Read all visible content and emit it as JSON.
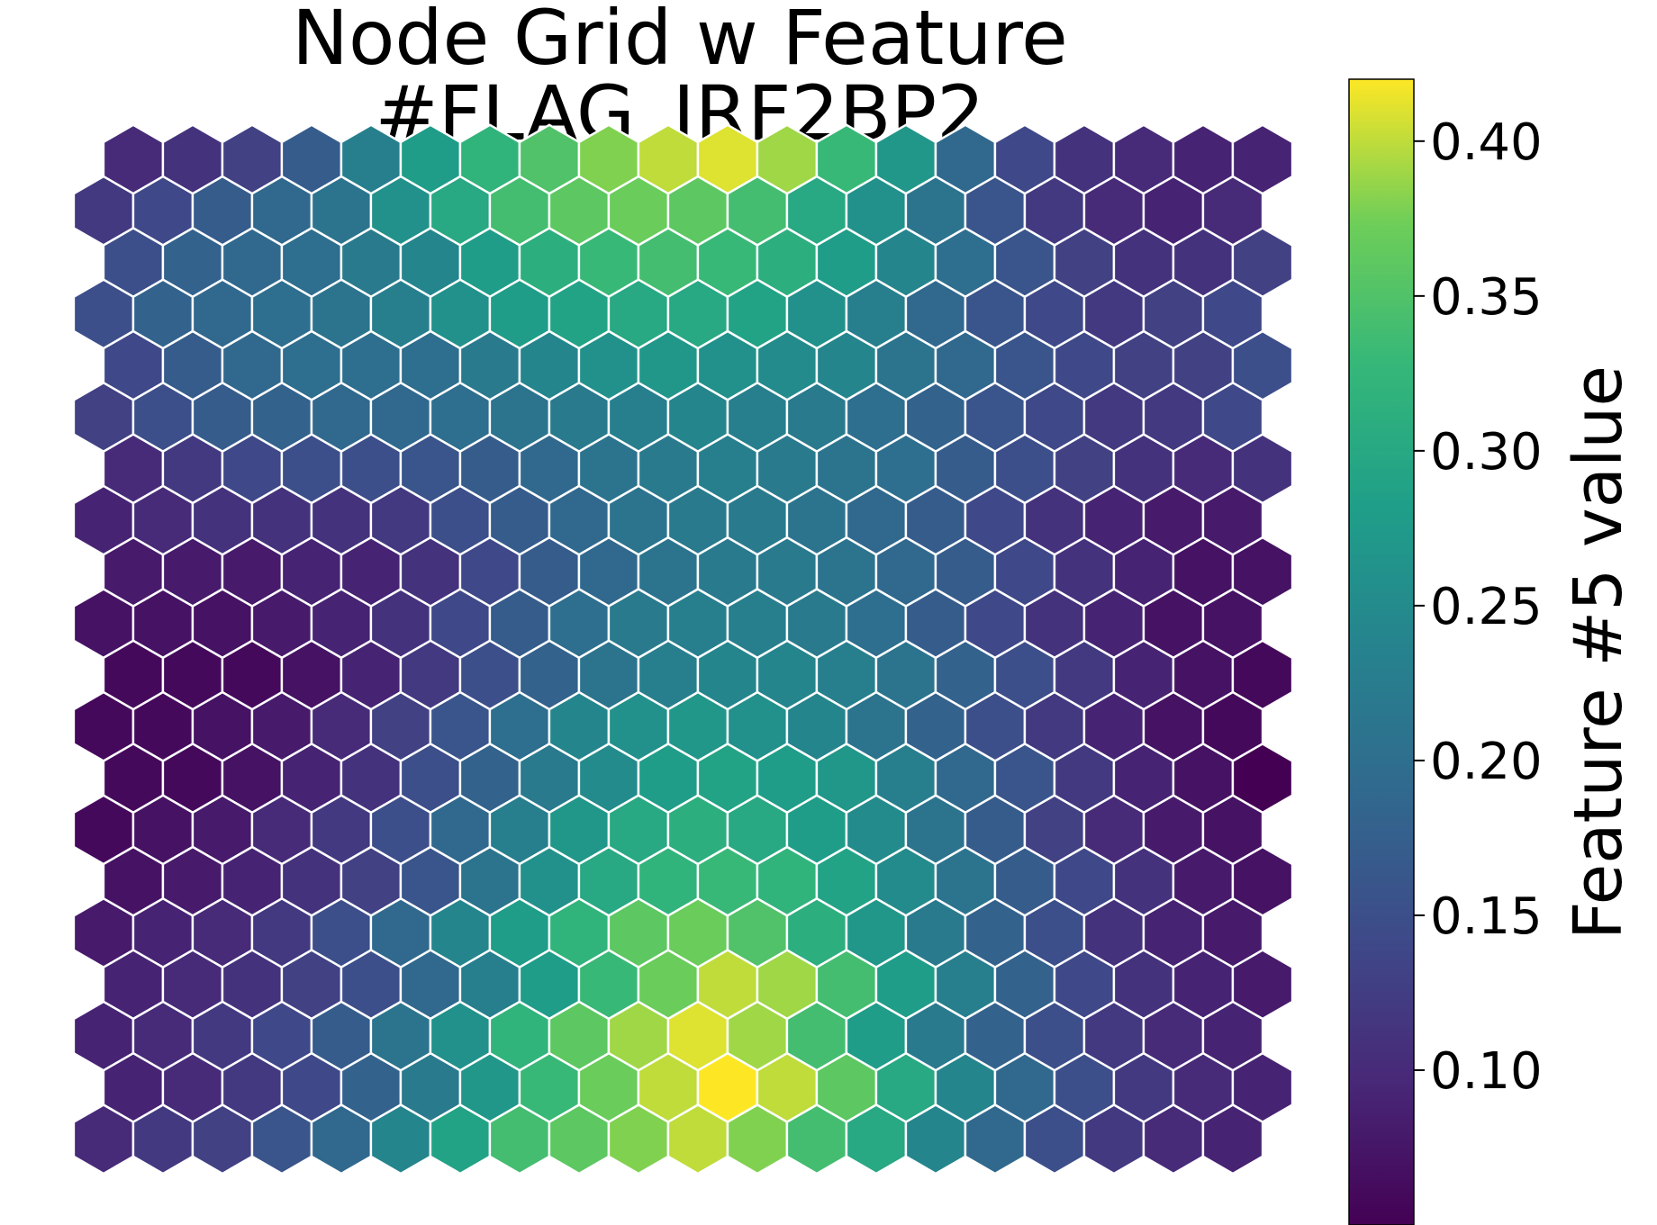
{
  "chart_data": {
    "type": "heatmap",
    "title": "Node Grid w Feature #FLAG_IRF2BP2",
    "grid": {
      "rows": 20,
      "cols": 20,
      "layout": "hexagonal"
    },
    "colormap": "viridis",
    "colorbar": {
      "label": "Feature #5 value",
      "range": [
        0.05,
        0.42
      ],
      "ticks": [
        0.1,
        0.15,
        0.2,
        0.25,
        0.3,
        0.35,
        0.4
      ],
      "tick_labels": [
        "0.10",
        "0.15",
        "0.20",
        "0.25",
        "0.30",
        "0.35",
        "0.40"
      ]
    },
    "values": [
      [
        0.1,
        0.11,
        0.13,
        0.17,
        0.23,
        0.28,
        0.32,
        0.35,
        0.38,
        0.4,
        0.41,
        0.39,
        0.33,
        0.27,
        0.19,
        0.14,
        0.11,
        0.1,
        0.09,
        0.09
      ],
      [
        0.12,
        0.14,
        0.17,
        0.19,
        0.21,
        0.26,
        0.3,
        0.34,
        0.36,
        0.37,
        0.36,
        0.34,
        0.3,
        0.26,
        0.21,
        0.16,
        0.12,
        0.1,
        0.09,
        0.1
      ],
      [
        0.15,
        0.18,
        0.19,
        0.2,
        0.22,
        0.24,
        0.28,
        0.31,
        0.33,
        0.34,
        0.33,
        0.31,
        0.28,
        0.24,
        0.2,
        0.16,
        0.13,
        0.11,
        0.11,
        0.13
      ],
      [
        0.15,
        0.18,
        0.19,
        0.2,
        0.21,
        0.23,
        0.26,
        0.28,
        0.29,
        0.3,
        0.3,
        0.29,
        0.26,
        0.23,
        0.19,
        0.16,
        0.14,
        0.12,
        0.13,
        0.14
      ],
      [
        0.14,
        0.17,
        0.19,
        0.2,
        0.2,
        0.2,
        0.22,
        0.24,
        0.26,
        0.27,
        0.26,
        0.25,
        0.24,
        0.21,
        0.19,
        0.16,
        0.14,
        0.13,
        0.13,
        0.15
      ],
      [
        0.13,
        0.15,
        0.17,
        0.18,
        0.19,
        0.19,
        0.2,
        0.21,
        0.22,
        0.23,
        0.24,
        0.23,
        0.22,
        0.2,
        0.18,
        0.16,
        0.14,
        0.12,
        0.12,
        0.14
      ],
      [
        0.1,
        0.12,
        0.14,
        0.15,
        0.15,
        0.16,
        0.17,
        0.19,
        0.21,
        0.22,
        0.23,
        0.22,
        0.21,
        0.2,
        0.17,
        0.15,
        0.13,
        0.11,
        0.1,
        0.11
      ],
      [
        0.09,
        0.1,
        0.11,
        0.11,
        0.11,
        0.12,
        0.15,
        0.17,
        0.19,
        0.21,
        0.22,
        0.22,
        0.21,
        0.19,
        0.17,
        0.14,
        0.11,
        0.09,
        0.08,
        0.08
      ],
      [
        0.08,
        0.08,
        0.08,
        0.09,
        0.09,
        0.11,
        0.14,
        0.17,
        0.19,
        0.21,
        0.22,
        0.22,
        0.21,
        0.19,
        0.17,
        0.14,
        0.11,
        0.09,
        0.07,
        0.07
      ],
      [
        0.07,
        0.07,
        0.07,
        0.08,
        0.09,
        0.11,
        0.14,
        0.17,
        0.2,
        0.22,
        0.23,
        0.23,
        0.22,
        0.2,
        0.17,
        0.14,
        0.11,
        0.09,
        0.07,
        0.07
      ],
      [
        0.06,
        0.06,
        0.06,
        0.07,
        0.09,
        0.12,
        0.15,
        0.18,
        0.21,
        0.23,
        0.24,
        0.24,
        0.23,
        0.21,
        0.18,
        0.15,
        0.12,
        0.09,
        0.07,
        0.06
      ],
      [
        0.06,
        0.06,
        0.07,
        0.08,
        0.1,
        0.13,
        0.16,
        0.2,
        0.24,
        0.26,
        0.27,
        0.26,
        0.24,
        0.21,
        0.18,
        0.15,
        0.12,
        0.09,
        0.07,
        0.06
      ],
      [
        0.06,
        0.06,
        0.07,
        0.09,
        0.11,
        0.15,
        0.18,
        0.22,
        0.25,
        0.28,
        0.29,
        0.28,
        0.27,
        0.23,
        0.19,
        0.16,
        0.12,
        0.09,
        0.07,
        0.05
      ],
      [
        0.06,
        0.07,
        0.08,
        0.1,
        0.12,
        0.15,
        0.19,
        0.23,
        0.27,
        0.3,
        0.31,
        0.3,
        0.28,
        0.25,
        0.21,
        0.17,
        0.13,
        0.1,
        0.08,
        0.07
      ],
      [
        0.07,
        0.08,
        0.09,
        0.11,
        0.13,
        0.16,
        0.21,
        0.26,
        0.3,
        0.32,
        0.33,
        0.32,
        0.29,
        0.25,
        0.21,
        0.17,
        0.14,
        0.11,
        0.08,
        0.07
      ],
      [
        0.08,
        0.09,
        0.1,
        0.12,
        0.15,
        0.19,
        0.24,
        0.28,
        0.32,
        0.36,
        0.37,
        0.35,
        0.31,
        0.27,
        0.22,
        0.18,
        0.15,
        0.11,
        0.09,
        0.08
      ],
      [
        0.09,
        0.1,
        0.11,
        0.13,
        0.15,
        0.19,
        0.23,
        0.28,
        0.33,
        0.37,
        0.4,
        0.39,
        0.34,
        0.28,
        0.23,
        0.18,
        0.14,
        0.11,
        0.09,
        0.08
      ],
      [
        0.09,
        0.1,
        0.12,
        0.14,
        0.17,
        0.21,
        0.26,
        0.32,
        0.36,
        0.39,
        0.41,
        0.39,
        0.34,
        0.28,
        0.22,
        0.18,
        0.15,
        0.12,
        0.1,
        0.09
      ],
      [
        0.09,
        0.1,
        0.12,
        0.14,
        0.18,
        0.22,
        0.27,
        0.33,
        0.37,
        0.4,
        0.42,
        0.4,
        0.36,
        0.3,
        0.24,
        0.19,
        0.15,
        0.12,
        0.1,
        0.09
      ],
      [
        0.1,
        0.12,
        0.13,
        0.16,
        0.19,
        0.24,
        0.29,
        0.34,
        0.36,
        0.38,
        0.4,
        0.38,
        0.34,
        0.3,
        0.24,
        0.19,
        0.15,
        0.12,
        0.1,
        0.09
      ]
    ]
  }
}
